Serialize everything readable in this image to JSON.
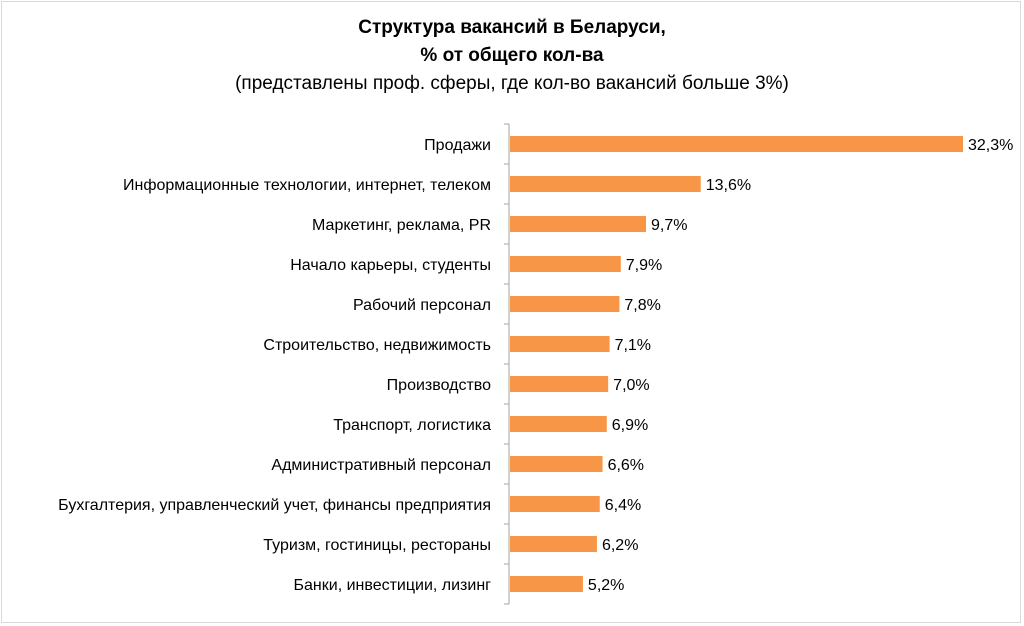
{
  "chart_data": {
    "type": "bar",
    "orientation": "horizontal",
    "title_line1": "Структура вакансий в Беларуси,",
    "title_line2": "% от общего кол-ва",
    "subtitle": "(представлены проф. сферы, где кол-во вакансий больше 3%)",
    "categories": [
      "Продажи",
      "Информационные технологии, интернет, телеком",
      "Маркетинг, реклама, PR",
      "Начало карьеры, студенты",
      "Рабочий персонал",
      "Строительство, недвижимость",
      "Производство",
      "Транспорт, логистика",
      "Административный персонал",
      "Бухгалтерия, управленческий учет, финансы предприятия",
      "Туризм, гостиницы, рестораны",
      "Банки, инвестиции, лизинг"
    ],
    "values": [
      32.3,
      13.6,
      9.7,
      7.9,
      7.8,
      7.1,
      7.0,
      6.9,
      6.6,
      6.4,
      6.2,
      5.2
    ],
    "value_labels": [
      "32,3%",
      "13,6%",
      "9,7%",
      "7,9%",
      "7,8%",
      "7,1%",
      "7,0%",
      "6,9%",
      "6,6%",
      "6,4%",
      "6,2%",
      "5,2%"
    ],
    "bar_color": "#F79646",
    "axis_color": "#a6a6a6",
    "grid": false,
    "legend": "none"
  }
}
